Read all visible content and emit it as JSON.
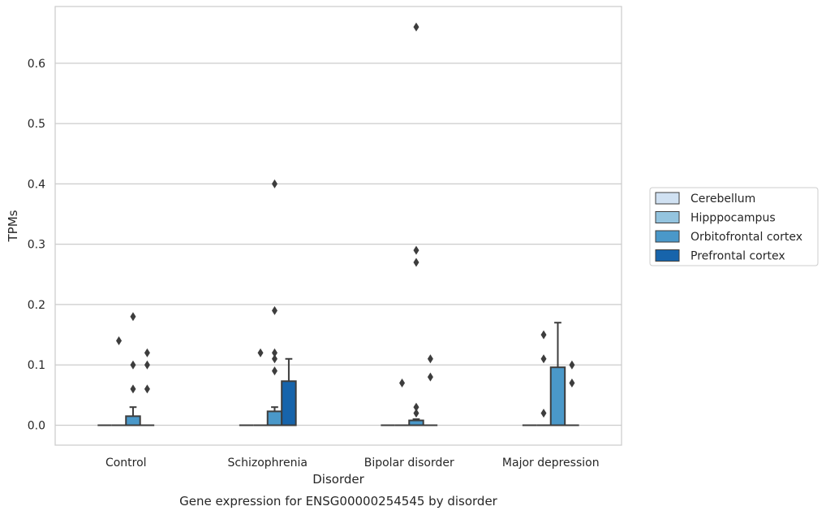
{
  "chart_data": {
    "type": "box",
    "title": "Gene expression for ENSG00000254545 by disorder",
    "xlabel": "Disorder",
    "ylabel": "TPMs",
    "ylim": [
      -0.033,
      0.694
    ],
    "yticks": [
      "0.0",
      "0.1",
      "0.2",
      "0.3",
      "0.4",
      "0.5",
      "0.6"
    ],
    "ytick_values": [
      0.0,
      0.1,
      0.2,
      0.3,
      0.4,
      0.5,
      0.6
    ],
    "grid": "horizontal",
    "legend_placement": "right",
    "categories": [
      "Control",
      "Schizophrenia",
      "Bipolar disorder",
      "Major depression"
    ],
    "series": [
      {
        "name": "Cerebellum",
        "color": "#d0e1f2",
        "boxes": [
          {
            "q1": 0,
            "median": 0,
            "q3": 0,
            "whisker_low": 0,
            "whisker_high": 0,
            "outliers": []
          },
          {
            "q1": 0,
            "median": 0,
            "q3": 0,
            "whisker_low": 0,
            "whisker_high": 0,
            "outliers": []
          },
          {
            "q1": 0,
            "median": 0,
            "q3": 0,
            "whisker_low": 0,
            "whisker_high": 0,
            "outliers": []
          },
          {
            "q1": 0,
            "median": 0,
            "q3": 0,
            "whisker_low": 0,
            "whisker_high": 0,
            "outliers": []
          }
        ]
      },
      {
        "name": "Hipppocampus",
        "color": "#94c4df",
        "boxes": [
          {
            "q1": 0,
            "median": 0,
            "q3": 0,
            "whisker_low": 0,
            "whisker_high": 0,
            "outliers": [
              0.14
            ]
          },
          {
            "q1": 0,
            "median": 0,
            "q3": 0,
            "whisker_low": 0,
            "whisker_high": 0,
            "outliers": [
              0.12
            ]
          },
          {
            "q1": 0,
            "median": 0,
            "q3": 0,
            "whisker_low": 0,
            "whisker_high": 0,
            "outliers": [
              0.07
            ]
          },
          {
            "q1": 0,
            "median": 0,
            "q3": 0,
            "whisker_low": 0,
            "whisker_high": 0,
            "outliers": [
              0.11,
              0.15,
              0.02
            ]
          }
        ]
      },
      {
        "name": "Orbitofrontal cortex",
        "color": "#4a98c9",
        "boxes": [
          {
            "q1": 0,
            "median": 0,
            "q3": 0.015,
            "whisker_low": 0,
            "whisker_high": 0.03,
            "outliers": [
              0.06,
              0.1,
              0.18
            ]
          },
          {
            "q1": 0,
            "median": 0,
            "q3": 0.023,
            "whisker_low": 0,
            "whisker_high": 0.03,
            "outliers": [
              0.09,
              0.11,
              0.12,
              0.19,
              0.4
            ]
          },
          {
            "q1": 0,
            "median": 0,
            "q3": 0.008,
            "whisker_low": 0,
            "whisker_high": 0.01,
            "outliers": [
              0.02,
              0.03,
              0.27,
              0.29,
              0.66
            ]
          },
          {
            "q1": 0,
            "median": 0,
            "q3": 0.096,
            "whisker_low": 0,
            "whisker_high": 0.17,
            "outliers": []
          }
        ]
      },
      {
        "name": "Prefrontal cortex",
        "color": "#1764ab",
        "boxes": [
          {
            "q1": 0,
            "median": 0,
            "q3": 0,
            "whisker_low": 0,
            "whisker_high": 0,
            "outliers": [
              0.06,
              0.1,
              0.12
            ]
          },
          {
            "q1": 0,
            "median": 0,
            "q3": 0.073,
            "whisker_low": 0,
            "whisker_high": 0.11,
            "outliers": []
          },
          {
            "q1": 0,
            "median": 0,
            "q3": 0,
            "whisker_low": 0,
            "whisker_high": 0,
            "outliers": [
              0.08,
              0.11
            ]
          },
          {
            "q1": 0,
            "median": 0,
            "q3": 0,
            "whisker_low": 0,
            "whisker_high": 0,
            "outliers": [
              0.07,
              0.1
            ]
          }
        ]
      }
    ]
  }
}
